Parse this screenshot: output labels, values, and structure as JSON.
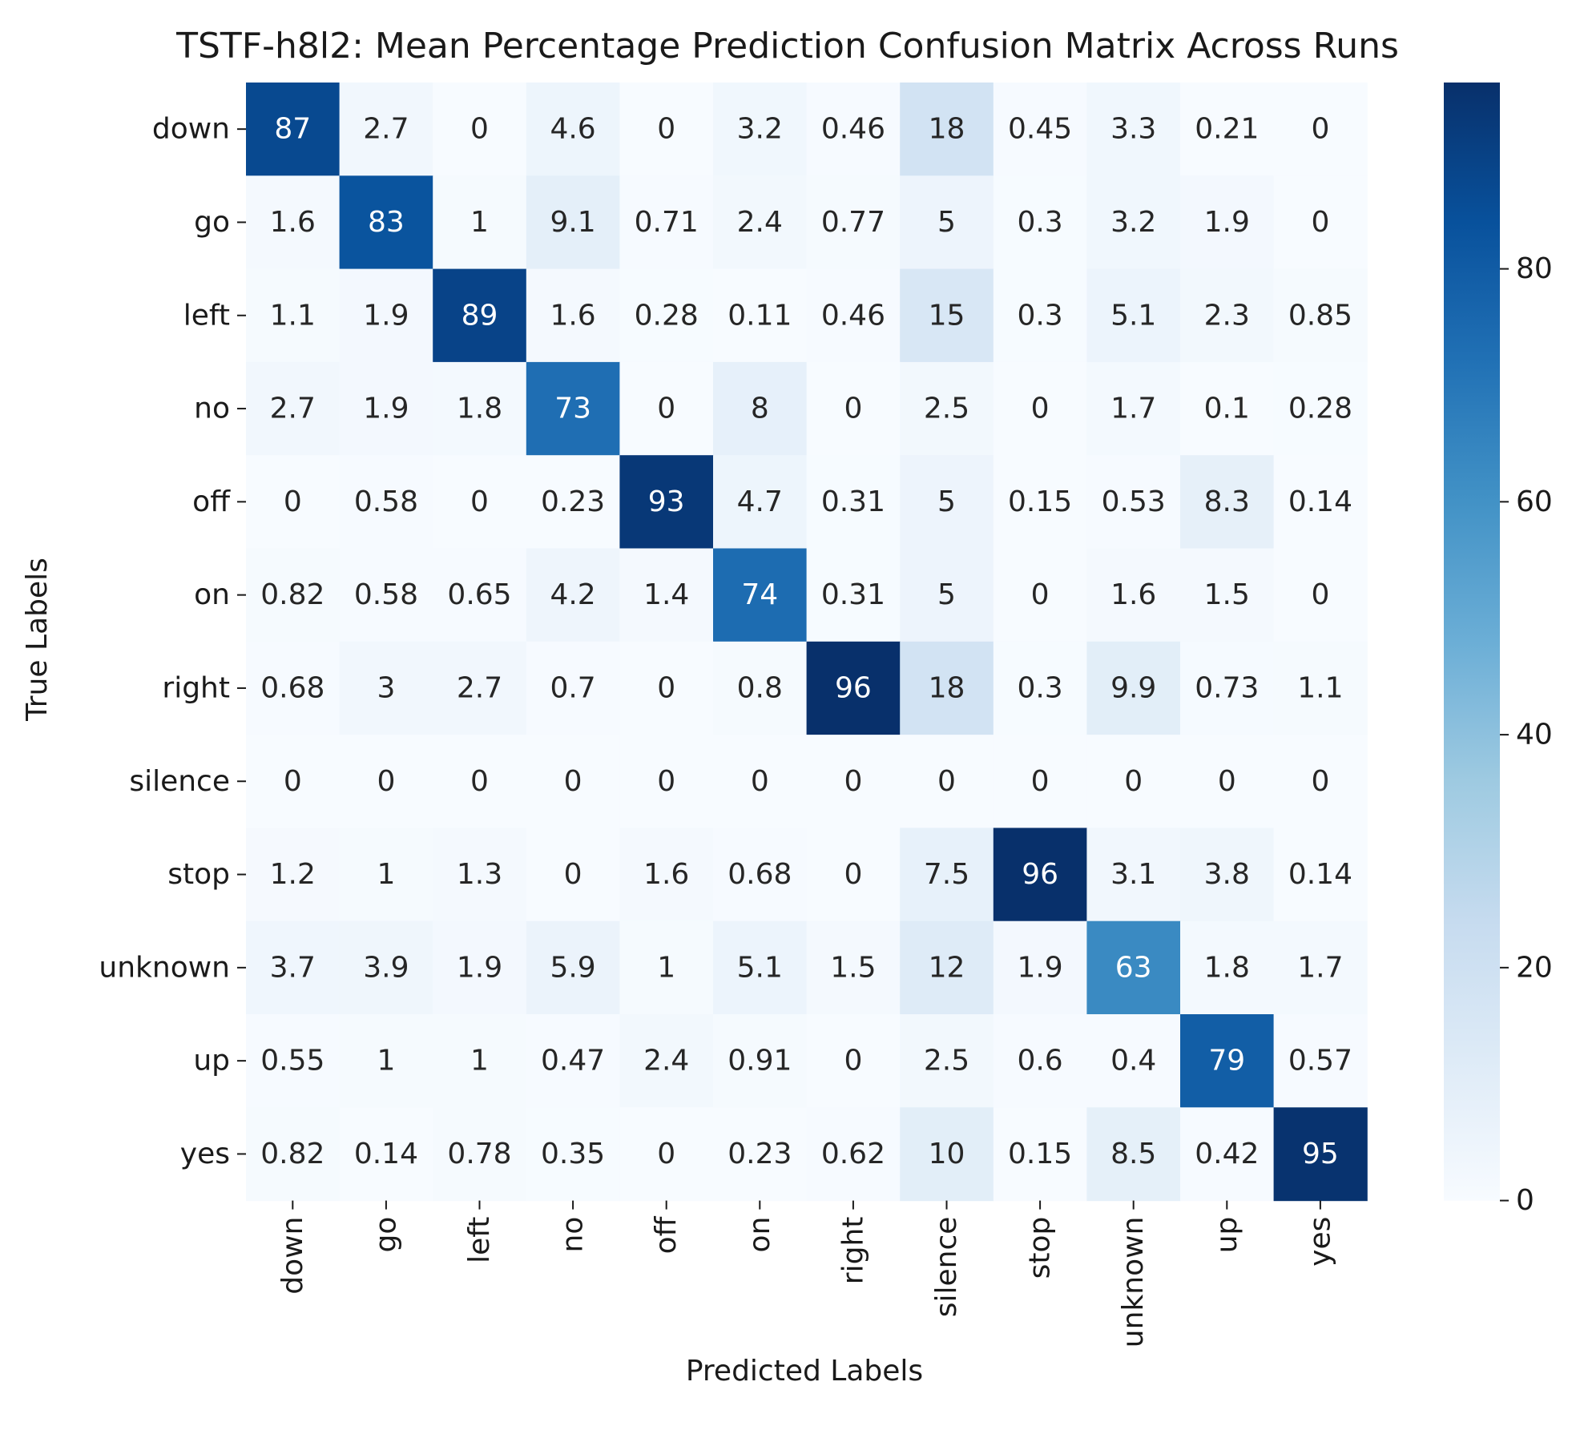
{
  "chart_data": {
    "type": "heatmap",
    "title": "TSTF-h8l2: Mean Percentage Prediction Confusion Matrix Across Runs",
    "xlabel": "Predicted Labels",
    "ylabel": "True Labels",
    "x_categories": [
      "down",
      "go",
      "left",
      "no",
      "off",
      "on",
      "right",
      "silence",
      "stop",
      "unknown",
      "up",
      "yes"
    ],
    "y_categories": [
      "down",
      "go",
      "left",
      "no",
      "off",
      "on",
      "right",
      "silence",
      "stop",
      "unknown",
      "up",
      "yes"
    ],
    "values": [
      [
        87,
        2.7,
        0,
        4.6,
        0,
        3.2,
        0.46,
        18,
        0.45,
        3.3,
        0.21,
        0
      ],
      [
        1.6,
        83,
        1,
        9.1,
        0.71,
        2.4,
        0.77,
        5,
        0.3,
        3.2,
        1.9,
        0
      ],
      [
        1.1,
        1.9,
        89,
        1.6,
        0.28,
        0.11,
        0.46,
        15,
        0.3,
        5.1,
        2.3,
        0.85
      ],
      [
        2.7,
        1.9,
        1.8,
        73,
        0,
        8,
        0,
        2.5,
        0,
        1.7,
        0.1,
        0.28
      ],
      [
        0,
        0.58,
        0,
        0.23,
        93,
        4.7,
        0.31,
        5,
        0.15,
        0.53,
        8.3,
        0.14
      ],
      [
        0.82,
        0.58,
        0.65,
        4.2,
        1.4,
        74,
        0.31,
        5,
        0,
        1.6,
        1.5,
        0
      ],
      [
        0.68,
        3,
        2.7,
        0.7,
        0,
        0.8,
        96,
        18,
        0.3,
        9.9,
        0.73,
        1.1
      ],
      [
        0,
        0,
        0,
        0,
        0,
        0,
        0,
        0,
        0,
        0,
        0,
        0
      ],
      [
        1.2,
        1,
        1.3,
        0,
        1.6,
        0.68,
        0,
        7.5,
        96,
        3.1,
        3.8,
        0.14
      ],
      [
        3.7,
        3.9,
        1.9,
        5.9,
        1,
        5.1,
        1.5,
        12,
        1.9,
        63,
        1.8,
        1.7
      ],
      [
        0.55,
        1,
        1,
        0.47,
        2.4,
        0.91,
        0,
        2.5,
        0.6,
        0.4,
        79,
        0.57
      ],
      [
        0.82,
        0.14,
        0.78,
        0.35,
        0,
        0.23,
        0.62,
        10,
        0.15,
        8.5,
        0.42,
        95
      ]
    ],
    "colormap": "Blues",
    "colorbar": {
      "range": [
        0,
        96
      ],
      "ticks": [
        0,
        20,
        40,
        60,
        80
      ],
      "tick_labels": [
        "0",
        "20",
        "40",
        "60",
        "80"
      ]
    },
    "text_color_light": "#ffffff",
    "text_color_dark": "#262626"
  }
}
